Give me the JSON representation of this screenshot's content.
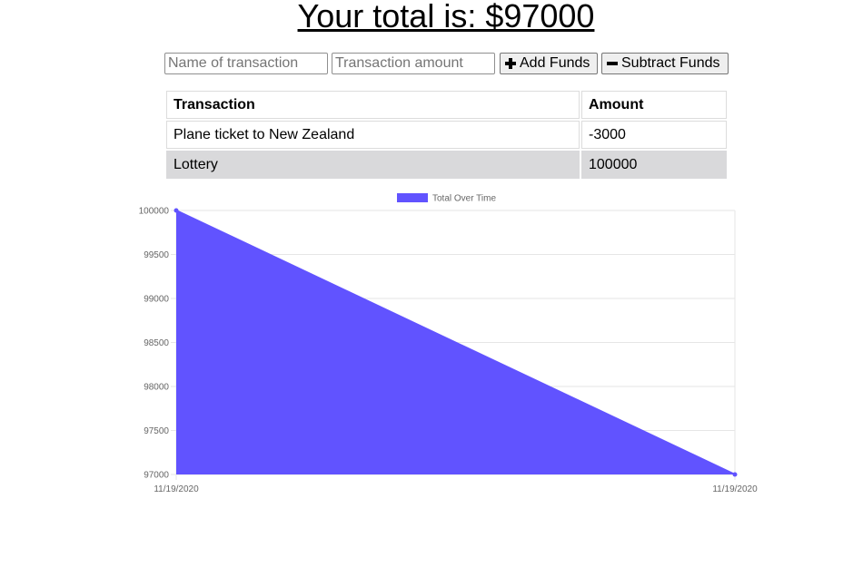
{
  "header": {
    "total_text": "Your total is: $97000"
  },
  "form": {
    "name_placeholder": "Name of transaction",
    "amount_placeholder": "Transaction amount",
    "add_label": "Add Funds",
    "subtract_label": "Subtract Funds",
    "add_icon": "plus-icon",
    "subtract_icon": "minus-icon"
  },
  "table": {
    "headers": [
      "Transaction",
      "Amount"
    ],
    "rows": [
      {
        "name": "Plane ticket to New Zealand",
        "amount": "-3000"
      },
      {
        "name": "Lottery",
        "amount": "100000"
      }
    ],
    "shaded_row_color": "#d9d9db"
  },
  "chart_data": {
    "type": "area",
    "x": [
      "11/19/2020",
      "11/19/2020"
    ],
    "series": [
      {
        "name": "Total Over Time",
        "values": [
          100000,
          97000
        ],
        "color": "#6153ff"
      }
    ],
    "ylim": [
      97000,
      100000
    ],
    "yticks": [
      "100000",
      "99500",
      "99000",
      "98500",
      "98000",
      "97500",
      "97000"
    ],
    "legend_position": "top-center",
    "grid": true
  }
}
